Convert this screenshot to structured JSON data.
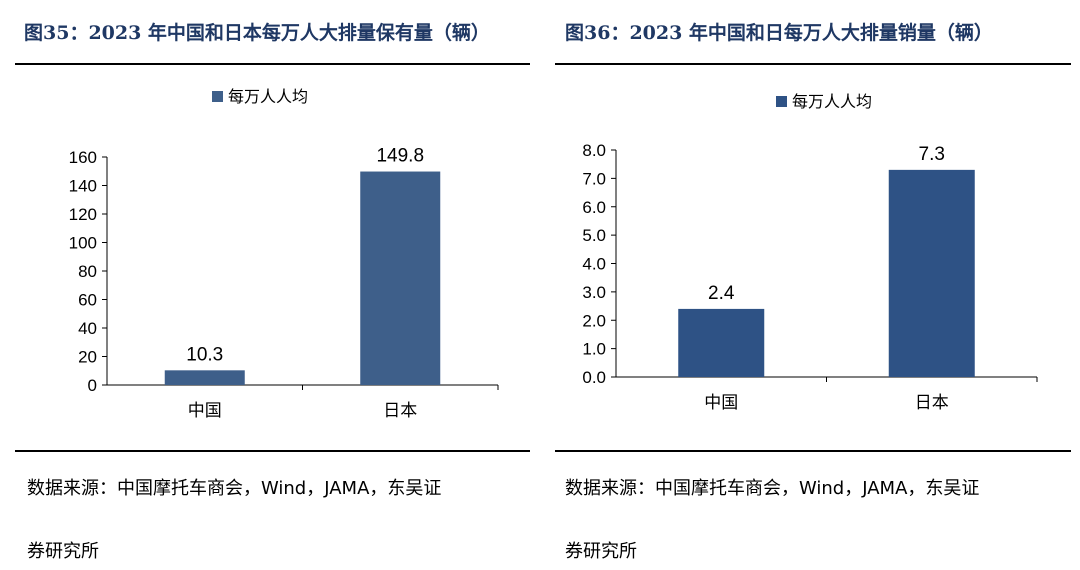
{
  "colors": {
    "bar_left": "#3e5f8a",
    "bar_right": "#2e5285",
    "title": "#1f3864"
  },
  "left": {
    "title": "图35：2023 年中国和日本每万人大排量保有量（辆）",
    "source_line1": "数据来源：中国摩托车商会，Wind，JAMA，东吴证",
    "source_line2": "券研究所"
  },
  "right": {
    "title": "图36：2023 年中国和日每万人大排量销量（辆）",
    "source_line1": "数据来源：中国摩托车商会，Wind，JAMA，东吴证",
    "source_line2": "券研究所"
  },
  "chart_data": [
    {
      "type": "bar",
      "title": "图35：2023 年中国和日本每万人大排量保有量（辆）",
      "legend": "每万人人均",
      "categories": [
        "中国",
        "日本"
      ],
      "values": [
        10.3,
        149.8
      ],
      "value_labels": [
        "10.3",
        "149.8"
      ],
      "ylim": [
        0,
        160
      ],
      "yticks": [
        "0",
        "20",
        "40",
        "60",
        "80",
        "100",
        "120",
        "140",
        "160"
      ],
      "xlabel": "",
      "ylabel": "",
      "grid": false,
      "legend_position": "top"
    },
    {
      "type": "bar",
      "title": "图36：2023 年中国和日每万人大排量销量（辆）",
      "legend": "每万人人均",
      "categories": [
        "中国",
        "日本"
      ],
      "values": [
        2.4,
        7.3
      ],
      "value_labels": [
        "2.4",
        "7.3"
      ],
      "ylim": [
        0,
        8
      ],
      "yticks": [
        "0.0",
        "1.0",
        "2.0",
        "3.0",
        "4.0",
        "5.0",
        "6.0",
        "7.0",
        "8.0"
      ],
      "xlabel": "",
      "ylabel": "",
      "grid": false,
      "legend_position": "top"
    }
  ]
}
